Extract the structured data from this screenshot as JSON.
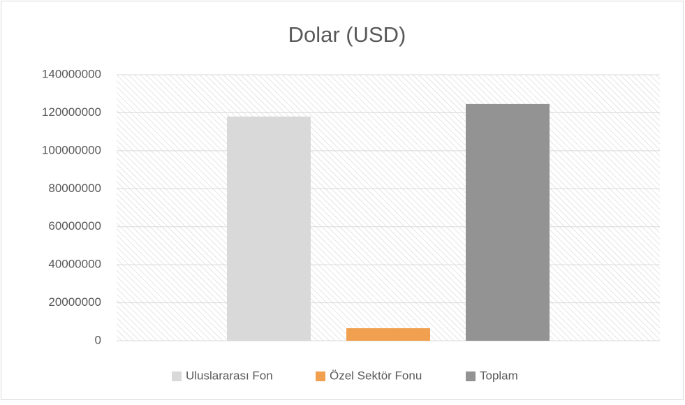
{
  "chart_data": {
    "type": "bar",
    "title": "Dolar (USD)",
    "categories": [
      null
    ],
    "series": [
      {
        "name": "Uluslararası Fon",
        "color": "#d9d9d9",
        "values": [
          118000000
        ]
      },
      {
        "name": "Özel Sektör Fonu",
        "color": "#f0a04f",
        "values": [
          6600000
        ]
      },
      {
        "name": "Toplam",
        "color": "#939393",
        "values": [
          124600000
        ]
      }
    ],
    "ylim": [
      0,
      140000000
    ],
    "yticks": [
      0,
      20000000,
      40000000,
      60000000,
      80000000,
      100000000,
      120000000,
      140000000
    ],
    "grid": true,
    "legend": "bottom"
  }
}
